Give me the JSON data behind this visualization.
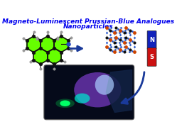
{
  "title_line1": "Magneto-Luminescent Prussian-Blue Analogues",
  "title_line2": "Nanoparticles",
  "title_color": "#0000EE",
  "title_fontsize": 6.5,
  "bg_color": "#FFFFFF",
  "arrow1_color": "#1a3a9a",
  "arrow2_color": "#1a3a9a",
  "magnet_N_color": "#1122bb",
  "magnet_S_color": "#cc1111",
  "magnet_text_color": "#FFFFFF",
  "photo_bg": "#050a1a",
  "green_spot_color": "#00ff88",
  "mol_green": "#66ff00",
  "mol_black": "#111111",
  "mol_gray": "#999999",
  "mol_blue": "#3333cc",
  "crystal_line_color": "#aaaaaa",
  "crystal_orange": "#cc4400",
  "crystal_blue": "#2255cc",
  "crystal_black": "#111111"
}
